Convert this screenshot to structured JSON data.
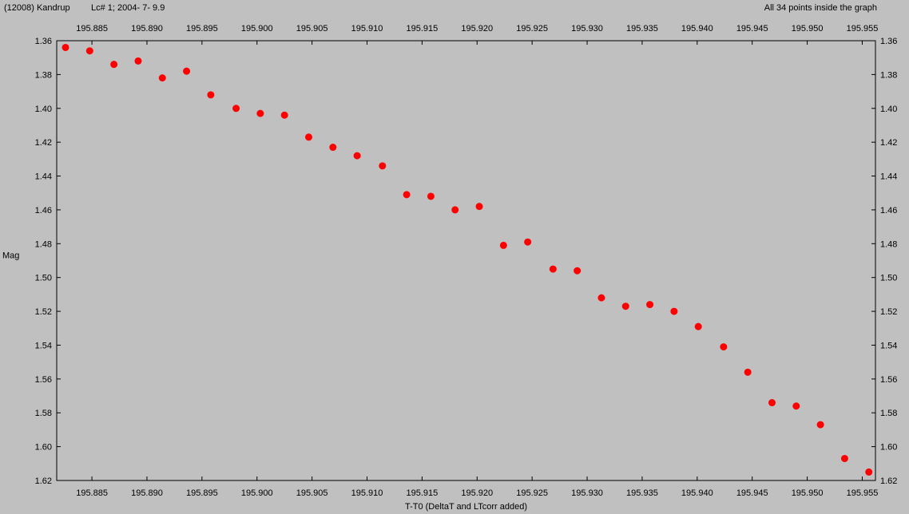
{
  "header": {
    "object": "(12008) Kandrup",
    "lightcurve": "Lc# 1; 2004- 7- 9.9",
    "status": "All 34 points inside the graph"
  },
  "chart_data": {
    "type": "scatter",
    "xlabel": "T-T0 (DeltaT and LTcorr added)",
    "ylabel": "Mag",
    "xlim": [
      195.8818,
      195.9562
    ],
    "ylim": [
      1.36,
      1.62
    ],
    "y_inverted": true,
    "x_ticks": [
      "195.885",
      "195.890",
      "195.895",
      "195.900",
      "195.905",
      "195.910",
      "195.915",
      "195.920",
      "195.925",
      "195.930",
      "195.935",
      "195.940",
      "195.945",
      "195.950",
      "195.955"
    ],
    "y_ticks": [
      "1.36",
      "1.38",
      "1.40",
      "1.42",
      "1.44",
      "1.46",
      "1.48",
      "1.50",
      "1.52",
      "1.54",
      "1.56",
      "1.58",
      "1.60",
      "1.62"
    ],
    "marker_color": "#ff0000",
    "points": [
      {
        "x": 195.8826,
        "y": 1.364
      },
      {
        "x": 195.8848,
        "y": 1.366
      },
      {
        "x": 195.887,
        "y": 1.374
      },
      {
        "x": 195.8892,
        "y": 1.372
      },
      {
        "x": 195.8914,
        "y": 1.382
      },
      {
        "x": 195.8936,
        "y": 1.378
      },
      {
        "x": 195.8958,
        "y": 1.392
      },
      {
        "x": 195.8981,
        "y": 1.4
      },
      {
        "x": 195.9003,
        "y": 1.403
      },
      {
        "x": 195.9025,
        "y": 1.404
      },
      {
        "x": 195.9047,
        "y": 1.417
      },
      {
        "x": 195.9069,
        "y": 1.423
      },
      {
        "x": 195.9091,
        "y": 1.428
      },
      {
        "x": 195.9114,
        "y": 1.434
      },
      {
        "x": 195.9136,
        "y": 1.451
      },
      {
        "x": 195.9158,
        "y": 1.452
      },
      {
        "x": 195.918,
        "y": 1.46
      },
      {
        "x": 195.9202,
        "y": 1.458
      },
      {
        "x": 195.9224,
        "y": 1.481
      },
      {
        "x": 195.9246,
        "y": 1.479
      },
      {
        "x": 195.9269,
        "y": 1.495
      },
      {
        "x": 195.9291,
        "y": 1.496
      },
      {
        "x": 195.9313,
        "y": 1.512
      },
      {
        "x": 195.9335,
        "y": 1.517
      },
      {
        "x": 195.9357,
        "y": 1.516
      },
      {
        "x": 195.9379,
        "y": 1.52
      },
      {
        "x": 195.9401,
        "y": 1.529
      },
      {
        "x": 195.9424,
        "y": 1.541
      },
      {
        "x": 195.9446,
        "y": 1.556
      },
      {
        "x": 195.9468,
        "y": 1.574
      },
      {
        "x": 195.949,
        "y": 1.576
      },
      {
        "x": 195.9512,
        "y": 1.587
      },
      {
        "x": 195.9534,
        "y": 1.607
      },
      {
        "x": 195.9556,
        "y": 1.615
      }
    ]
  }
}
